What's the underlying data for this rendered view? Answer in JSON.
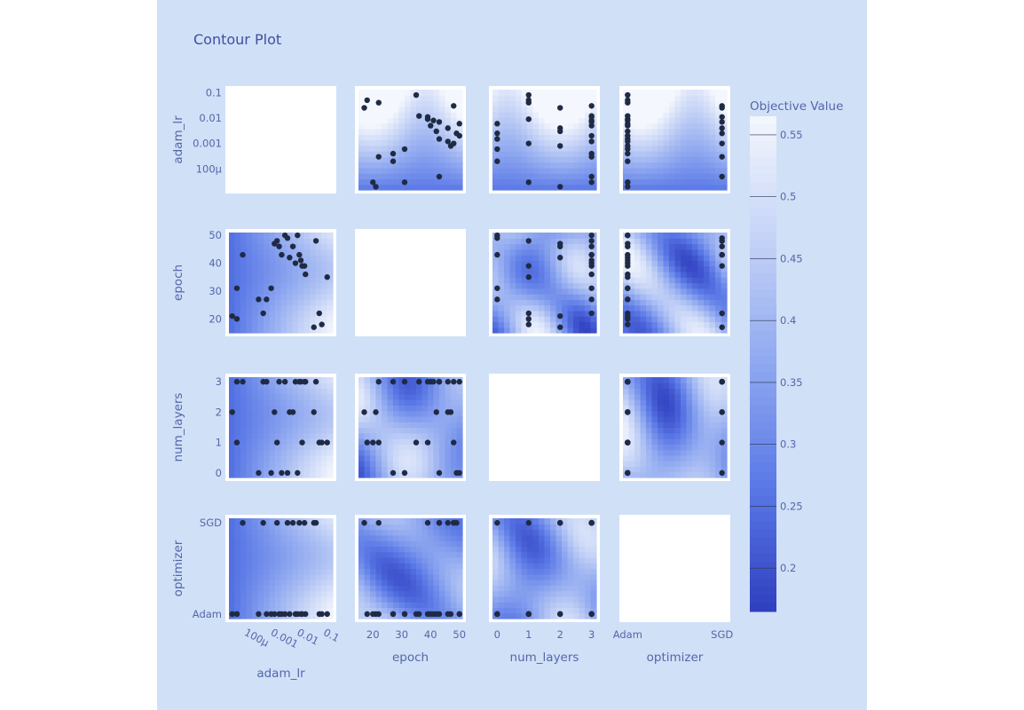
{
  "chart_data": {
    "type": "contour",
    "title": "Contour Plot",
    "params": [
      "adam_lr",
      "epoch",
      "num_layers",
      "optimizer"
    ],
    "axes": {
      "adam_lr": {
        "label": "adam_lr",
        "scale": "log",
        "range": [
          1.5e-05,
          0.13
        ],
        "ticks": [
          0.0001,
          0.001,
          0.01,
          0.1
        ],
        "tick_labels": [
          "100μ",
          "0.001",
          "0.01",
          "0.1"
        ]
      },
      "epoch": {
        "label": "epoch",
        "scale": "linear",
        "range": [
          15,
          51
        ],
        "ticks": [
          20,
          30,
          40,
          50
        ],
        "tick_labels": [
          "20",
          "30",
          "40",
          "50"
        ]
      },
      "num_layers": {
        "label": "num_layers",
        "scale": "linear",
        "range": [
          -0.15,
          3.15
        ],
        "ticks": [
          0,
          1,
          2,
          3
        ],
        "tick_labels": [
          "0",
          "1",
          "2",
          "3"
        ]
      },
      "optimizer": {
        "label": "optimizer",
        "scale": "category",
        "range": [
          -0.05,
          1.05
        ],
        "ticks": [
          0,
          1
        ],
        "tick_labels": [
          "Adam",
          "SGD"
        ]
      }
    },
    "colorbar": {
      "title": "Objective Value",
      "range": [
        0.165,
        0.565
      ],
      "ticks": [
        0.2,
        0.25,
        0.3,
        0.35,
        0.4,
        0.45,
        0.5,
        0.55
      ],
      "tick_labels": [
        "0.2",
        "0.25",
        "0.3",
        "0.35",
        "0.4",
        "0.45",
        "0.5",
        "0.55"
      ],
      "colors": [
        "#2f3fbf",
        "#5a78e6",
        "#8fa8f0",
        "#c4d2f6",
        "#f4f7fd"
      ]
    },
    "trials": [
      {
        "adam_lr": 0.03,
        "epoch": 48,
        "num_layers": 3,
        "optimizer": "SGD"
      },
      {
        "adam_lr": 2e-05,
        "epoch": 21,
        "num_layers": 2,
        "optimizer": "Adam"
      },
      {
        "adam_lr": 3e-05,
        "epoch": 20,
        "num_layers": 1,
        "optimizer": "Adam"
      },
      {
        "adam_lr": 5e-05,
        "epoch": 43,
        "num_layers": 3,
        "optimizer": "SGD"
      },
      {
        "adam_lr": 0.0002,
        "epoch": 27,
        "num_layers": 0,
        "optimizer": "Adam"
      },
      {
        "adam_lr": 0.0004,
        "epoch": 27,
        "num_layers": 3,
        "optimizer": "Adam"
      },
      {
        "adam_lr": 0.0008,
        "epoch": 47,
        "num_layers": 2,
        "optimizer": "Adam"
      },
      {
        "adam_lr": 0.001,
        "epoch": 48,
        "num_layers": 1,
        "optimizer": "SGD"
      },
      {
        "adam_lr": 0.0015,
        "epoch": 43,
        "num_layers": 0,
        "optimizer": "Adam"
      },
      {
        "adam_lr": 0.002,
        "epoch": 50,
        "num_layers": 3,
        "optimizer": "Adam"
      },
      {
        "adam_lr": 0.004,
        "epoch": 46,
        "num_layers": 2,
        "optimizer": "SGD"
      },
      {
        "adam_lr": 0.005,
        "epoch": 40,
        "num_layers": 3,
        "optimizer": "Adam"
      },
      {
        "adam_lr": 0.006,
        "epoch": 50,
        "num_layers": 0,
        "optimizer": "Adam"
      },
      {
        "adam_lr": 0.007,
        "epoch": 43,
        "num_layers": 3,
        "optimizer": "SGD"
      },
      {
        "adam_lr": 0.008,
        "epoch": 41,
        "num_layers": 3,
        "optimizer": "Adam"
      },
      {
        "adam_lr": 0.009,
        "epoch": 39,
        "num_layers": 1,
        "optimizer": "Adam"
      },
      {
        "adam_lr": 0.011,
        "epoch": 39,
        "num_layers": 3,
        "optimizer": "SGD"
      },
      {
        "adam_lr": 0.04,
        "epoch": 22,
        "num_layers": 1,
        "optimizer": "Adam"
      },
      {
        "adam_lr": 0.05,
        "epoch": 18,
        "num_layers": 1,
        "optimizer": "Adam"
      },
      {
        "adam_lr": 0.08,
        "epoch": 35,
        "num_layers": 1,
        "optimizer": "Adam"
      },
      {
        "adam_lr": 0.025,
        "epoch": 17,
        "num_layers": 2,
        "optimizer": "SGD"
      },
      {
        "adam_lr": 0.0006,
        "epoch": 31,
        "num_layers": 0,
        "optimizer": "Adam"
      },
      {
        "adam_lr": 3e-05,
        "epoch": 31,
        "num_layers": 3,
        "optimizer": "Adam"
      },
      {
        "adam_lr": 0.0025,
        "epoch": 49,
        "num_layers": 0,
        "optimizer": "SGD"
      },
      {
        "adam_lr": 0.003,
        "epoch": 42,
        "num_layers": 2,
        "optimizer": "Adam"
      },
      {
        "adam_lr": 0.012,
        "epoch": 36,
        "num_layers": 3,
        "optimizer": "Adam"
      },
      {
        "adam_lr": 0.0003,
        "epoch": 22,
        "num_layers": 3,
        "optimizer": "SGD"
      },
      {
        "adam_lr": 0.0012,
        "epoch": 46,
        "num_layers": 3,
        "optimizer": "Adam"
      }
    ]
  }
}
